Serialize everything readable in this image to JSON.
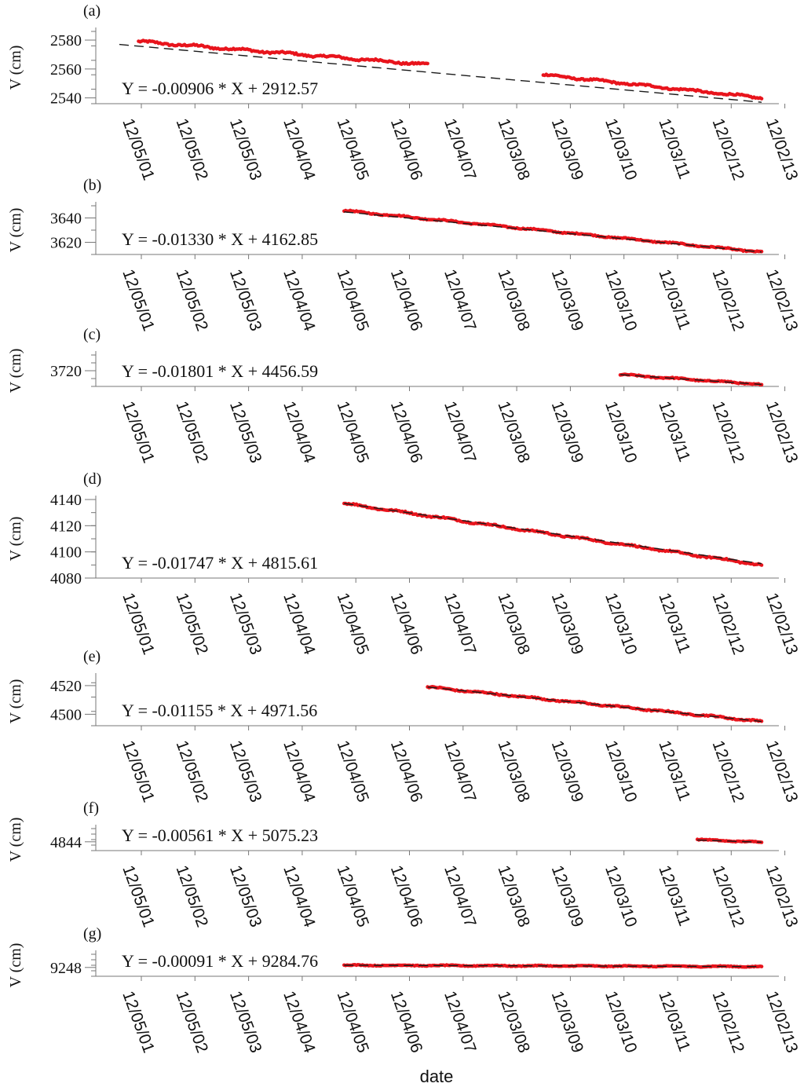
{
  "chart_data": {
    "type": "scatter",
    "xlabel": "date",
    "date_ticks": [
      "12/05/01",
      "12/05/02",
      "12/05/03",
      "12/04/04",
      "12/04/05",
      "12/04/06",
      "12/04/07",
      "12/03/08",
      "12/03/09",
      "12/03/10",
      "12/03/11",
      "12/02/12",
      "12/02/13"
    ],
    "colors": {
      "points": "#e8141c",
      "fit_line": "#1a1a1a",
      "axis": "#777777"
    },
    "panels": [
      {
        "label": "(a)",
        "ylabel": "V (cm)",
        "equation": "Y = -0.00906 * X + 2912.57",
        "yticks": [
          2580,
          2560,
          2540
        ],
        "ylim": [
          2536,
          2586
        ],
        "segments": [
          {
            "x": [
              0.03,
              0.48
            ],
            "y": [
              2579,
              2563
            ],
            "noise": 1.2
          },
          {
            "x": [
              0.66,
              1.0
            ],
            "y": [
              2556,
              2540
            ],
            "noise": 1.0
          }
        ],
        "fit": {
          "x": [
            0.0,
            1.0
          ],
          "y": [
            2577,
            2537
          ]
        }
      },
      {
        "label": "(b)",
        "ylabel": "V (cm)",
        "equation": "Y = -0.01330 * X + 4162.85",
        "yticks": [
          3640,
          3620
        ],
        "ylim": [
          3610,
          3650
        ],
        "segments": [
          {
            "x": [
              0.35,
              1.0
            ],
            "y": [
              3646,
              3612
            ],
            "noise": 0.8
          }
        ],
        "fit": {
          "x": [
            0.35,
            1.0
          ],
          "y": [
            3645,
            3612
          ]
        }
      },
      {
        "label": "(c)",
        "ylabel": "V (cm)",
        "equation": "Y = -0.01801 * X + 4456.59",
        "yticks": [
          3720
        ],
        "ylim": [
          3716,
          3724
        ],
        "segments": [
          {
            "x": [
              0.78,
              1.0
            ],
            "y": [
              3719.0,
              3716.5
            ],
            "noise": 0.25
          }
        ],
        "fit": {
          "x": [
            0.78,
            1.0
          ],
          "y": [
            3719.0,
            3716.5
          ]
        }
      },
      {
        "label": "(d)",
        "ylabel": "V (cm)",
        "equation": "Y = -0.01747 * X + 4815.61",
        "yticks": [
          4140,
          4120,
          4100,
          4080
        ],
        "ylim": [
          4080,
          4140
        ],
        "segments": [
          {
            "x": [
              0.35,
              1.0
            ],
            "y": [
              4137,
              4090
            ],
            "noise": 1.0
          }
        ],
        "fit": {
          "x": [
            0.35,
            1.0
          ],
          "y": [
            4137,
            4091
          ]
        }
      },
      {
        "label": "(e)",
        "ylabel": "V (cm)",
        "equation": "Y = -0.01155 * X + 4971.56",
        "yticks": [
          4520,
          4500
        ],
        "ylim": [
          4492,
          4526
        ],
        "segments": [
          {
            "x": [
              0.48,
              1.0
            ],
            "y": [
              4519,
              4495
            ],
            "noise": 0.8
          }
        ],
        "fit": {
          "x": [
            0.48,
            1.0
          ],
          "y": [
            4519,
            4495
          ]
        }
      },
      {
        "label": "(f)",
        "ylabel": "V (cm)",
        "equation": "Y = -0.00561 * X + 5075.23",
        "yticks": [
          4844
        ],
        "ylim": [
          4842,
          4847
        ],
        "segments": [
          {
            "x": [
              0.9,
              1.0
            ],
            "y": [
              4844.5,
              4843.9
            ],
            "noise": 0.15
          }
        ],
        "fit": {
          "x": [
            0.9,
            1.0
          ],
          "y": [
            4844.4,
            4843.9
          ]
        }
      },
      {
        "label": "(g)",
        "ylabel": "V (cm)",
        "equation": "Y = -0.00091 * X + 9284.76",
        "yticks": [
          9248
        ],
        "ylim": [
          9246,
          9251
        ],
        "segments": [
          {
            "x": [
              0.35,
              1.0
            ],
            "y": [
              9248.5,
              9248.2
            ],
            "noise": 0.15
          }
        ],
        "fit": {
          "x": [
            0.35,
            1.0
          ],
          "y": [
            9248.5,
            9248.2
          ]
        }
      }
    ]
  }
}
